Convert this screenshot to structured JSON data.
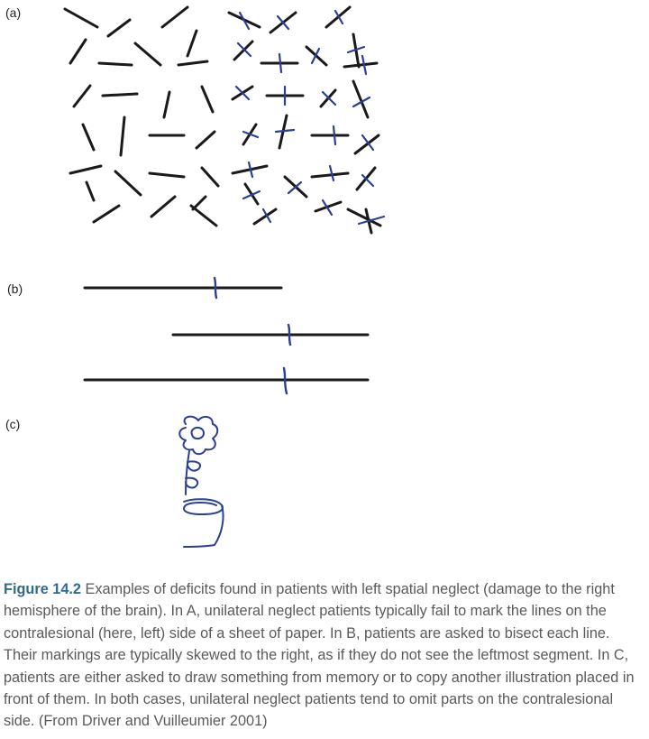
{
  "panels": {
    "a_label": "(a)",
    "b_label": "(b)",
    "c_label": "(c)"
  },
  "colors": {
    "stimulus": "#1a1a1a",
    "patient_mark": "#2b3f94",
    "caption_text": "#5a5a5a",
    "figure_number": "#2e6b8f"
  },
  "caption": {
    "figure_number": "Figure 14.2",
    "text": " Examples of deficits found in patients with left spatial neglect (damage to the right hemisphere of the brain). In A, unilateral neglect patients typically fail to mark the lines on the contralesional (here, left) side of a sheet of paper. In B, patients are asked to bisect each line. Their markings are typically skewed to the right, as if they do not see the leftmost segment. In C, patients are either asked to draw something from memory or to copy another illustration placed in front of them. In both cases, unilateral neglect patients tend to omit parts on the contralesional side. (From Driver and Vuilleumier 2001)"
  }
}
